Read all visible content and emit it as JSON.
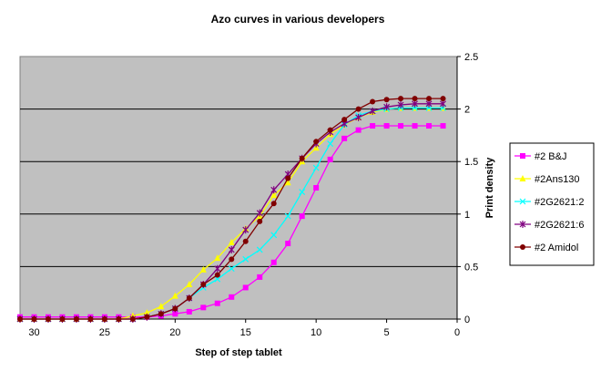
{
  "chart_data": {
    "type": "line",
    "title": "Azo curves in various developers",
    "xlabel": "Step of step tablet",
    "ylabel": "Print density",
    "xlim": [
      31,
      0
    ],
    "ylim": [
      0,
      2.5
    ],
    "x_ticks": [
      30,
      25,
      20,
      15,
      10,
      5,
      0
    ],
    "y_ticks": [
      0,
      0.5,
      1,
      1.5,
      2,
      2.5
    ],
    "x_tick_labels": [
      "30",
      "25",
      "20",
      "15",
      "10",
      "5",
      "0"
    ],
    "y_tick_labels": [
      "0",
      "0.5",
      "1",
      "1.5",
      "2",
      "2.5"
    ],
    "grid": "horizontal",
    "plot_background": "#c0c0c0",
    "legend_position": "right",
    "x": [
      31,
      30,
      29,
      28,
      27,
      26,
      25,
      24,
      23,
      22,
      21,
      20,
      19,
      18,
      17,
      16,
      15,
      14,
      13,
      12,
      11,
      10,
      9,
      8,
      7,
      6,
      5,
      4,
      3,
      2,
      1
    ],
    "series": [
      {
        "name": "#2 B&J",
        "color": "#ff00ff",
        "marker": "square",
        "values": [
          0.02,
          0.02,
          0.02,
          0.02,
          0.02,
          0.02,
          0.02,
          0.02,
          0.02,
          0.02,
          0.03,
          0.05,
          0.07,
          0.11,
          0.15,
          0.21,
          0.3,
          0.4,
          0.54,
          0.72,
          0.98,
          1.25,
          1.52,
          1.72,
          1.8,
          1.84,
          1.84,
          1.84,
          1.84,
          1.84,
          1.84
        ]
      },
      {
        "name": "#2Ans130",
        "color": "#ffff00",
        "marker": "triangle",
        "values": [
          0,
          0,
          0,
          0,
          0,
          0,
          0,
          0,
          0.03,
          0.06,
          0.12,
          0.22,
          0.33,
          0.47,
          0.58,
          0.73,
          0.86,
          0.98,
          1.18,
          1.3,
          1.5,
          1.63,
          1.76,
          1.85,
          1.92,
          1.97,
          2.0,
          2.01,
          2.01,
          2.01,
          2.01
        ]
      },
      {
        "name": "#2G2621:2",
        "color": "#00ffff",
        "marker": "x",
        "values": [
          0,
          0,
          0,
          0,
          0,
          0,
          0,
          0,
          0,
          0.02,
          0.05,
          0.1,
          0.2,
          0.3,
          0.38,
          0.48,
          0.57,
          0.66,
          0.8,
          0.98,
          1.21,
          1.44,
          1.67,
          1.85,
          1.94,
          1.98,
          2.0,
          2.01,
          2.01,
          2.01,
          2.01
        ]
      },
      {
        "name": "#2G2621:6",
        "color": "#800080",
        "marker": "star",
        "values": [
          0,
          0,
          0,
          0,
          0,
          0,
          0,
          0,
          0,
          0.02,
          0.05,
          0.1,
          0.2,
          0.33,
          0.48,
          0.66,
          0.85,
          1.01,
          1.23,
          1.38,
          1.53,
          1.67,
          1.78,
          1.86,
          1.92,
          1.98,
          2.02,
          2.04,
          2.05,
          2.05,
          2.05
        ]
      },
      {
        "name": "#2 Amidol",
        "color": "#800000",
        "marker": "circle",
        "values": [
          0,
          0,
          0,
          0,
          0,
          0,
          0,
          0,
          0,
          0.02,
          0.05,
          0.1,
          0.2,
          0.33,
          0.42,
          0.57,
          0.74,
          0.93,
          1.1,
          1.34,
          1.53,
          1.69,
          1.8,
          1.9,
          2.0,
          2.07,
          2.09,
          2.1,
          2.1,
          2.1,
          2.1
        ]
      }
    ]
  }
}
